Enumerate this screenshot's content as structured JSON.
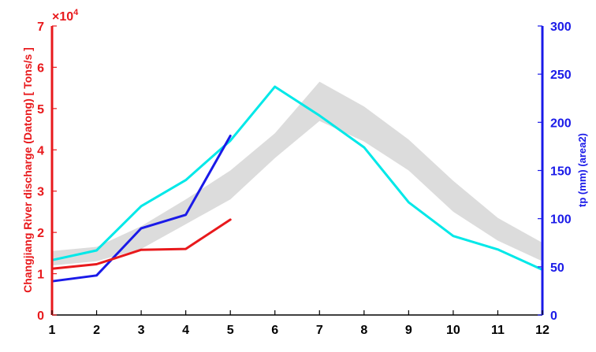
{
  "chart_data": {
    "type": "line",
    "x": [
      1,
      2,
      3,
      4,
      5,
      6,
      7,
      8,
      9,
      10,
      11,
      12
    ],
    "xlim": [
      1,
      12
    ],
    "x_ticks": [
      "1",
      "2",
      "3",
      "4",
      "5",
      "6",
      "7",
      "8",
      "9",
      "10",
      "11",
      "12"
    ],
    "left_axis": {
      "label": "Changjiang River discharge (Datong) [ Tons/s ]",
      "multiplier": "×10",
      "multiplier_exp": "4",
      "ylim": [
        0,
        7
      ],
      "ticks": [
        "0",
        "1",
        "2",
        "3",
        "4",
        "5",
        "6",
        "7"
      ],
      "color": "#e8191c"
    },
    "right_axis": {
      "label": "tp (mm) (area2)",
      "ylim": [
        0,
        300
      ],
      "ticks": [
        "0",
        "50",
        "100",
        "150",
        "200",
        "250",
        "300"
      ],
      "color": "#1a1ae8"
    },
    "band": {
      "axis": "left",
      "color": "#dcdcdc",
      "x": [
        1,
        2,
        3,
        4,
        5,
        6,
        7,
        8,
        9,
        10,
        11,
        12
      ],
      "lower": [
        1.2,
        1.3,
        1.6,
        2.2,
        2.8,
        3.8,
        4.7,
        4.2,
        3.5,
        2.5,
        1.8,
        1.3
      ],
      "upper": [
        1.55,
        1.65,
        2.15,
        2.8,
        3.5,
        4.4,
        5.65,
        5.05,
        4.25,
        3.25,
        2.35,
        1.75
      ]
    },
    "series": [
      {
        "axis": "right",
        "color": "#00e8e8",
        "x": [
          1,
          2,
          3,
          4,
          5,
          6,
          7,
          8,
          9,
          10,
          11,
          12
        ],
        "values": [
          57,
          67,
          113,
          140,
          181,
          237,
          207,
          174,
          117,
          82,
          68,
          47
        ]
      },
      {
        "axis": "right",
        "color": "#1a1ae8",
        "x": [
          1,
          2,
          3,
          4,
          5
        ],
        "values": [
          35,
          41,
          90,
          104,
          186
        ]
      },
      {
        "axis": "left",
        "color": "#e8191c",
        "x": [
          1,
          2,
          3,
          4,
          5
        ],
        "values": [
          1.12,
          1.23,
          1.58,
          1.6,
          2.31
        ]
      }
    ],
    "grid": false,
    "legend": "none"
  }
}
